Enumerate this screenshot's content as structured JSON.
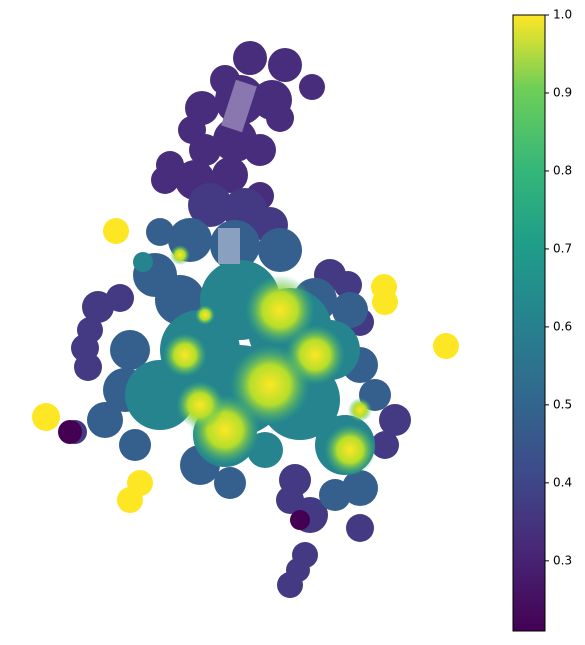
{
  "map": {
    "colorbar": {
      "lim": [
        0.21,
        1.0
      ],
      "ticks": [
        0.3,
        0.4,
        0.5,
        0.6,
        0.7,
        0.8,
        0.9,
        {
          "value": 1,
          "label": "1.0"
        }
      ]
    }
  }
}
